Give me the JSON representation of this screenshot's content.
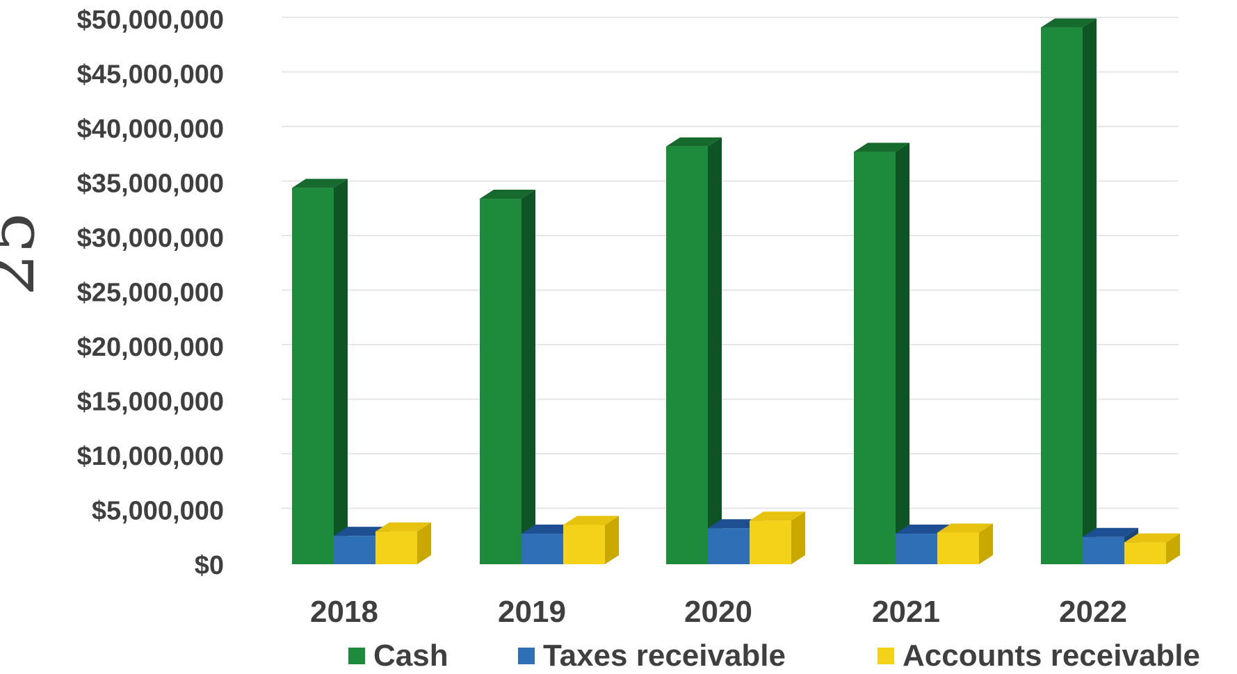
{
  "annotation": "25",
  "chart_data": {
    "type": "bar",
    "title": "",
    "xlabel": "",
    "ylabel": "",
    "categories": [
      "2018",
      "2019",
      "2020",
      "2021",
      "2022"
    ],
    "series": [
      {
        "name": "Cash",
        "color": "#1e8a3c",
        "side_color": "#0f5424",
        "top_color": "#166a2d",
        "values": [
          34500000,
          33500000,
          38300000,
          37800000,
          49200000
        ]
      },
      {
        "name": "Taxes receivable",
        "color": "#2e6fb5",
        "side_color": "#1a4578",
        "top_color": "#1d4f92",
        "values": [
          2600000,
          2800000,
          3300000,
          2800000,
          2500000
        ]
      },
      {
        "name": "Accounts receivable",
        "color": "#f5d21a",
        "side_color": "#c9a800",
        "top_color": "#e7c20e",
        "values": [
          3000000,
          3600000,
          4000000,
          2900000,
          2000000
        ]
      }
    ],
    "ylim": [
      0,
      50000000
    ],
    "yticks": [
      0,
      5000000,
      10000000,
      15000000,
      20000000,
      25000000,
      30000000,
      35000000,
      40000000,
      45000000,
      50000000
    ],
    "ytick_labels": [
      "$0",
      "$5,000,000",
      "$10,000,000",
      "$15,000,000",
      "$20,000,000",
      "$25,000,000",
      "$30,000,000",
      "$35,000,000",
      "$40,000,000",
      "$45,000,000",
      "$50,000,000"
    ],
    "grid": true,
    "legend_position": "bottom",
    "style": "3d-column"
  }
}
